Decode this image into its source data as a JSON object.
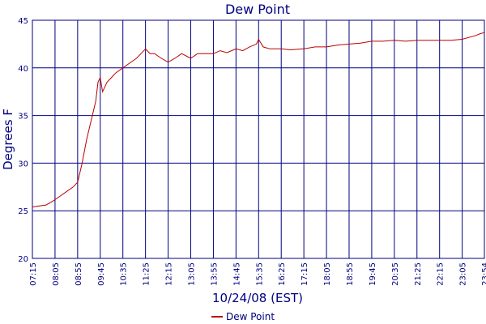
{
  "chart_data": {
    "type": "line",
    "title": "Dew Point",
    "xlabel": "10/24/08 (EST)",
    "ylabel": "Degrees F",
    "ylim": [
      20,
      45
    ],
    "yticks": [
      "20",
      "25",
      "30",
      "35",
      "40",
      "45"
    ],
    "xticks": [
      "07:15",
      "08:05",
      "08:55",
      "09:45",
      "10:35",
      "11:25",
      "12:15",
      "13:05",
      "13:55",
      "14:45",
      "15:35",
      "16:25",
      "17:15",
      "18:05",
      "18:55",
      "19:45",
      "20:35",
      "21:25",
      "22:15",
      "23:05",
      "23:54"
    ],
    "grid": true,
    "legend_position": "bottom",
    "colors": {
      "series": "#bb0000",
      "axis": "#00007f",
      "grid": "#00007f"
    },
    "series": [
      {
        "name": "Dew Point",
        "x": [
          "07:15",
          "07:30",
          "07:45",
          "08:00",
          "08:15",
          "08:30",
          "08:45",
          "08:55",
          "09:05",
          "09:15",
          "09:25",
          "09:35",
          "09:40",
          "09:45",
          "09:50",
          "09:55",
          "10:00",
          "10:10",
          "10:20",
          "10:35",
          "10:50",
          "11:05",
          "11:15",
          "11:25",
          "11:35",
          "11:45",
          "12:00",
          "12:15",
          "12:30",
          "12:45",
          "13:05",
          "13:20",
          "13:35",
          "13:55",
          "14:10",
          "14:25",
          "14:45",
          "15:00",
          "15:15",
          "15:30",
          "15:35",
          "15:45",
          "16:00",
          "16:25",
          "16:45",
          "17:15",
          "17:40",
          "18:05",
          "18:30",
          "18:55",
          "19:20",
          "19:45",
          "20:10",
          "20:35",
          "21:00",
          "21:25",
          "21:50",
          "22:15",
          "22:40",
          "23:05",
          "23:20",
          "23:35",
          "23:45",
          "23:54"
        ],
        "values": [
          25.4,
          25.5,
          25.6,
          26.0,
          26.5,
          27.0,
          27.5,
          28.0,
          30.0,
          32.5,
          34.5,
          36.5,
          38.5,
          39.0,
          37.5,
          38.0,
          38.5,
          39.0,
          39.5,
          40.0,
          40.5,
          41.0,
          41.5,
          42.0,
          41.5,
          41.5,
          41.0,
          40.6,
          41.0,
          41.5,
          41.0,
          41.5,
          41.5,
          41.5,
          41.8,
          41.6,
          42.0,
          41.8,
          42.2,
          42.5,
          43.0,
          42.2,
          42.0,
          42.0,
          41.9,
          42.0,
          42.2,
          42.2,
          42.4,
          42.5,
          42.6,
          42.8,
          42.8,
          42.9,
          42.8,
          42.9,
          42.9,
          42.9,
          42.9,
          43.0,
          43.2,
          43.4,
          43.6,
          43.7
        ]
      }
    ]
  }
}
